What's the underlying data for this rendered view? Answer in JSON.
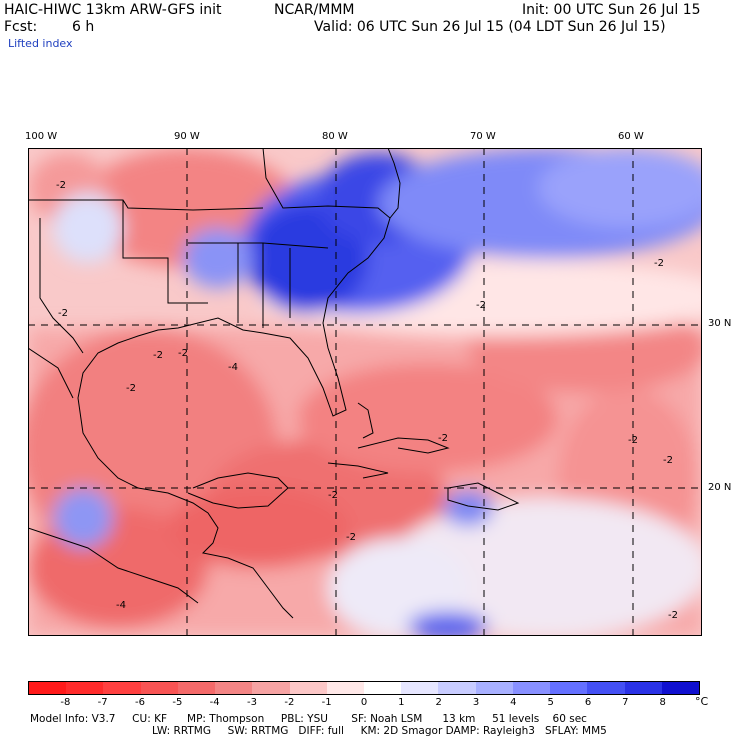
{
  "header": {
    "model": "HAIC-HIWC 13km ARW-GFS init",
    "org": "NCAR/MMM",
    "init": "Init: 00 UTC Sun 26 Jul 15",
    "fcst_label": "Fcst:",
    "fcst_value": "6 h",
    "valid": "Valid: 06 UTC Sun 26 Jul 15 (04 LDT Sun 26 Jul 15)",
    "field": "Lifted index"
  },
  "map": {
    "lon_labels": [
      "100 W",
      "90 W",
      "80 W",
      "70 W",
      "60 W"
    ],
    "lat_labels": [
      "30 N",
      "20 N"
    ],
    "contour_labels": [
      "-2",
      "-2",
      "-2",
      "-2",
      "-2",
      "-4",
      "-2",
      "-2",
      "-2",
      "-2",
      "-2",
      "-2",
      "-4",
      "-2",
      "-2"
    ]
  },
  "colorbar": {
    "ticks": [
      "-8",
      "-7",
      "-6",
      "-5",
      "-4",
      "-3",
      "-2",
      "-1",
      "0",
      "1",
      "2",
      "3",
      "4",
      "5",
      "6",
      "7",
      "8"
    ],
    "unit": "°C",
    "colors": [
      "#ff1a1a",
      "#ff2b2b",
      "#ff4040",
      "#f85454",
      "#f46a6a",
      "#f38585",
      "#f6a3a3",
      "#fcc7c7",
      "#ffe8e8",
      "#ffffff",
      "#e6e6ff",
      "#c8ccff",
      "#a8b0ff",
      "#8890ff",
      "#6470ff",
      "#4450f4",
      "#2a32e6",
      "#1010d0"
    ]
  },
  "model_info": {
    "line1": "Model Info: V3.7     CU: KF      MP: Thompson     PBL: YSU       SF: Noah LSM      13 km     51 levels    60 sec",
    "line2": "LW: RRTMG     SW: RRTMG   DIFF: full     KM: 2D Smagor DAMP: Rayleigh3   SFLAY: MM5"
  }
}
